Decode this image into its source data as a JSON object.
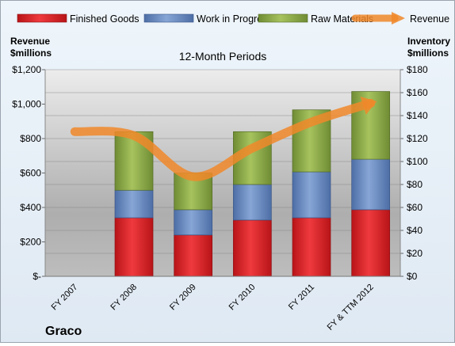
{
  "chart_data": {
    "type": "bar",
    "stacked": true,
    "company": "Graco",
    "title": "12-Month Periods",
    "categories": [
      "FY 2007",
      "FY 2008",
      "FY 2009",
      "FY 2010",
      "FY 2011",
      "FY & TTM 2012"
    ],
    "left_axis": {
      "label": [
        "Revenue",
        "$millions"
      ],
      "ylim": [
        0,
        1200
      ],
      "ticks": [
        0,
        200,
        400,
        600,
        800,
        1000,
        1200
      ],
      "tick_labels": [
        "$-",
        "$200",
        "$400",
        "$600",
        "$800",
        "$1,000",
        "$1,200"
      ]
    },
    "right_axis": {
      "label": [
        "Inventory",
        "$millions"
      ],
      "ylim": [
        0,
        180
      ],
      "ticks": [
        0,
        20,
        40,
        60,
        80,
        100,
        120,
        140,
        160,
        180
      ],
      "tick_labels": [
        "$0",
        "$20",
        "$40",
        "$60",
        "$80",
        "$100",
        "$120",
        "$140",
        "$160",
        "$180"
      ]
    },
    "legend": {
      "placement": "top",
      "entries": [
        "Finished Goods",
        "Work in Progress",
        "Raw Materials",
        "Revenue"
      ]
    },
    "series": [
      {
        "name": "Finished Goods",
        "axis": "right",
        "kind": "bar",
        "color": "#d9262b",
        "values": [
          null,
          51,
          36,
          49,
          51,
          58
        ]
      },
      {
        "name": "Work in Progress",
        "axis": "right",
        "kind": "bar",
        "color": "#6a8cc4",
        "values": [
          null,
          24,
          22,
          31,
          40,
          44
        ]
      },
      {
        "name": "Raw Materials",
        "axis": "right",
        "kind": "bar",
        "color": "#8cab47",
        "values": [
          null,
          51,
          32,
          46,
          54,
          59
        ]
      },
      {
        "name": "Revenue",
        "axis": "left",
        "kind": "line",
        "color": "#f0882a",
        "values": [
          840,
          817,
          579,
          744,
          896,
          1005
        ]
      }
    ],
    "grid": true
  }
}
